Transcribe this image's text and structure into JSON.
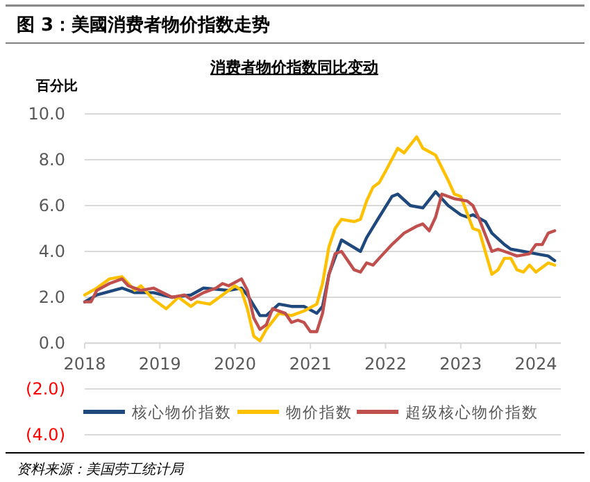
{
  "chart_data": {
    "type": "line",
    "title": "图 3：美國消费者物价指数走势",
    "subtitle": "消费者物价指数同比变动",
    "ylabel": "百分比",
    "annotations": [
      "资料来源：美国劳工统计局"
    ],
    "xlim": [
      "2018-01-01",
      "2024-05-01"
    ],
    "xticks": [
      {
        "value": "2018-01-01",
        "label": "2018"
      },
      {
        "value": "2019-01-01",
        "label": "2019"
      },
      {
        "value": "2020-01-01",
        "label": "2020"
      },
      {
        "value": "2021-01-01",
        "label": "2021"
      },
      {
        "value": "2022-01-01",
        "label": "2022"
      },
      {
        "value": "2023-01-01",
        "label": "2023"
      },
      {
        "value": "2024-01-01",
        "label": "2024"
      }
    ],
    "ylim": [
      -4,
      10
    ],
    "yticks": [
      {
        "value": 10,
        "label": "10.0"
      },
      {
        "value": 8,
        "label": "8.0"
      },
      {
        "value": 6,
        "label": "6.0"
      },
      {
        "value": 4,
        "label": "4.0"
      },
      {
        "value": 2,
        "label": "2.0"
      },
      {
        "value": 0,
        "label": "0.0"
      },
      {
        "value": -2,
        "label": "(2.0)"
      },
      {
        "value": -4,
        "label": "(4.0)"
      }
    ],
    "grid": "y",
    "legend": "bottom",
    "line_style": "solid",
    "series": [
      {
        "name": "核心物价指数",
        "color": "#1f497d",
        "x": [
          "2018-01",
          "2018-03",
          "2018-07",
          "2018-09",
          "2018-12",
          "2019-03",
          "2019-06",
          "2019-08",
          "2019-12",
          "2020-02",
          "2020-03",
          "2020-05",
          "2020-06",
          "2020-08",
          "2020-10",
          "2020-12",
          "2021-02",
          "2021-03",
          "2021-04",
          "2021-06",
          "2021-09",
          "2021-10",
          "2021-12",
          "2022-02",
          "2022-03",
          "2022-05",
          "2022-07",
          "2022-09",
          "2022-11",
          "2023-01",
          "2023-02",
          "2023-03",
          "2023-05",
          "2023-06",
          "2023-08",
          "2023-09",
          "2023-11",
          "2024-01",
          "2024-03",
          "2024-04"
        ],
        "values": [
          1.8,
          2.1,
          2.4,
          2.2,
          2.2,
          2.0,
          2.1,
          2.4,
          2.3,
          2.4,
          2.1,
          1.2,
          1.2,
          1.7,
          1.6,
          1.6,
          1.3,
          1.6,
          3.0,
          4.5,
          4.0,
          4.6,
          5.5,
          6.4,
          6.5,
          6.0,
          5.9,
          6.6,
          6.0,
          5.6,
          5.5,
          5.6,
          5.3,
          4.8,
          4.3,
          4.1,
          4.0,
          3.9,
          3.8,
          3.6
        ]
      },
      {
        "name": "物价指数",
        "color": "#ffc000",
        "x": [
          "2018-01",
          "2018-03",
          "2018-05",
          "2018-07",
          "2018-09",
          "2018-10",
          "2018-12",
          "2019-02",
          "2019-04",
          "2019-06",
          "2019-07",
          "2019-09",
          "2019-11",
          "2020-01",
          "2020-02",
          "2020-03",
          "2020-04",
          "2020-05",
          "2020-06",
          "2020-08",
          "2020-10",
          "2020-12",
          "2021-02",
          "2021-03",
          "2021-04",
          "2021-05",
          "2021-06",
          "2021-08",
          "2021-09",
          "2021-10",
          "2021-11",
          "2021-12",
          "2022-01",
          "2022-03",
          "2022-04",
          "2022-06",
          "2022-07",
          "2022-09",
          "2022-11",
          "2022-12",
          "2023-01",
          "2023-03",
          "2023-04",
          "2023-06",
          "2023-07",
          "2023-08",
          "2023-09",
          "2023-10",
          "2023-11",
          "2023-12",
          "2024-01",
          "2024-03",
          "2024-04"
        ],
        "values": [
          2.1,
          2.4,
          2.8,
          2.9,
          2.3,
          2.5,
          1.9,
          1.5,
          2.0,
          1.6,
          1.8,
          1.7,
          2.1,
          2.5,
          2.3,
          1.5,
          0.3,
          0.1,
          0.6,
          1.3,
          1.2,
          1.4,
          1.7,
          2.6,
          4.2,
          5.0,
          5.4,
          5.3,
          5.4,
          6.2,
          6.8,
          7.0,
          7.5,
          8.5,
          8.3,
          9.0,
          8.5,
          8.2,
          7.1,
          6.5,
          6.4,
          5.0,
          4.9,
          3.0,
          3.2,
          3.7,
          3.7,
          3.2,
          3.1,
          3.4,
          3.1,
          3.5,
          3.4
        ]
      },
      {
        "name": "超级核心物价指数",
        "color": "#c0504d",
        "x": [
          "2018-01",
          "2018-02",
          "2018-03",
          "2018-05",
          "2018-07",
          "2018-08",
          "2018-10",
          "2018-12",
          "2019-03",
          "2019-05",
          "2019-06",
          "2019-08",
          "2019-10",
          "2019-11",
          "2019-12",
          "2020-02",
          "2020-03",
          "2020-04",
          "2020-05",
          "2020-06",
          "2020-07",
          "2020-09",
          "2020-10",
          "2020-11",
          "2020-12",
          "2021-01",
          "2021-02",
          "2021-03",
          "2021-04",
          "2021-05",
          "2021-06",
          "2021-08",
          "2021-09",
          "2021-10",
          "2021-11",
          "2021-12",
          "2022-02",
          "2022-04",
          "2022-06",
          "2022-07",
          "2022-08",
          "2022-09",
          "2022-10",
          "2022-12",
          "2023-02",
          "2023-03",
          "2023-04",
          "2023-06",
          "2023-07",
          "2023-09",
          "2023-10",
          "2023-12",
          "2024-01",
          "2024-02",
          "2024-03",
          "2024-04"
        ],
        "values": [
          1.8,
          1.8,
          2.3,
          2.6,
          2.8,
          2.5,
          2.3,
          2.4,
          2.0,
          2.1,
          1.9,
          2.2,
          2.4,
          2.6,
          2.5,
          2.8,
          2.3,
          1.1,
          0.6,
          0.8,
          1.5,
          1.3,
          0.9,
          1.0,
          0.9,
          0.5,
          0.5,
          1.3,
          3.0,
          3.9,
          4.0,
          3.2,
          3.1,
          3.5,
          3.4,
          3.7,
          4.3,
          4.8,
          5.1,
          5.2,
          4.9,
          5.5,
          6.5,
          6.3,
          6.2,
          6.0,
          5.4,
          4.0,
          4.1,
          3.9,
          3.8,
          3.9,
          4.3,
          4.3,
          4.8,
          4.9
        ]
      }
    ]
  }
}
